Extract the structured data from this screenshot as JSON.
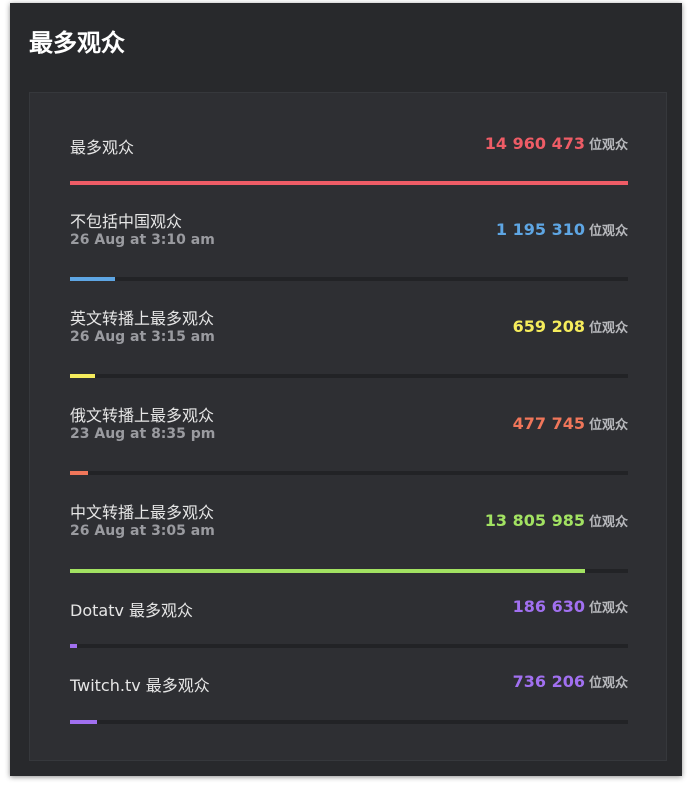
{
  "title": "最多观众",
  "unit": "位观众",
  "rows": [
    {
      "label": "最多观众",
      "date": "",
      "value": "14 960 473",
      "color": "#ee5c66",
      "fill_pct": 100,
      "track": false
    },
    {
      "label": "不包括中国观众",
      "date": "26 Aug at 3:10 am",
      "value": "1 195 310",
      "color": "#5ea6e4",
      "fill_pct": 8,
      "track": true
    },
    {
      "label": "英文转播上最多观众",
      "date": "26 Aug at 3:15 am",
      "value": "659 208",
      "color": "#f5ec5c",
      "fill_pct": 4.4,
      "track": true
    },
    {
      "label": "俄文转播上最多观众",
      "date": "23 Aug at 8:35 pm",
      "value": "477 745",
      "color": "#f0765a",
      "fill_pct": 3.2,
      "track": true
    },
    {
      "label": "中文转播上最多观众",
      "date": "26 Aug at 3:05 am",
      "value": "13 805 985",
      "color": "#a2e262",
      "fill_pct": 92.3,
      "track": true
    },
    {
      "label": "Dotatv 最多观众",
      "date": "",
      "value": "186 630",
      "color": "#a170f0",
      "fill_pct": 1.2,
      "track": true
    },
    {
      "label": "Twitch.tv 最多观众",
      "date": "",
      "value": "736 206",
      "color": "#a170f0",
      "fill_pct": 4.9,
      "track": true
    }
  ]
}
